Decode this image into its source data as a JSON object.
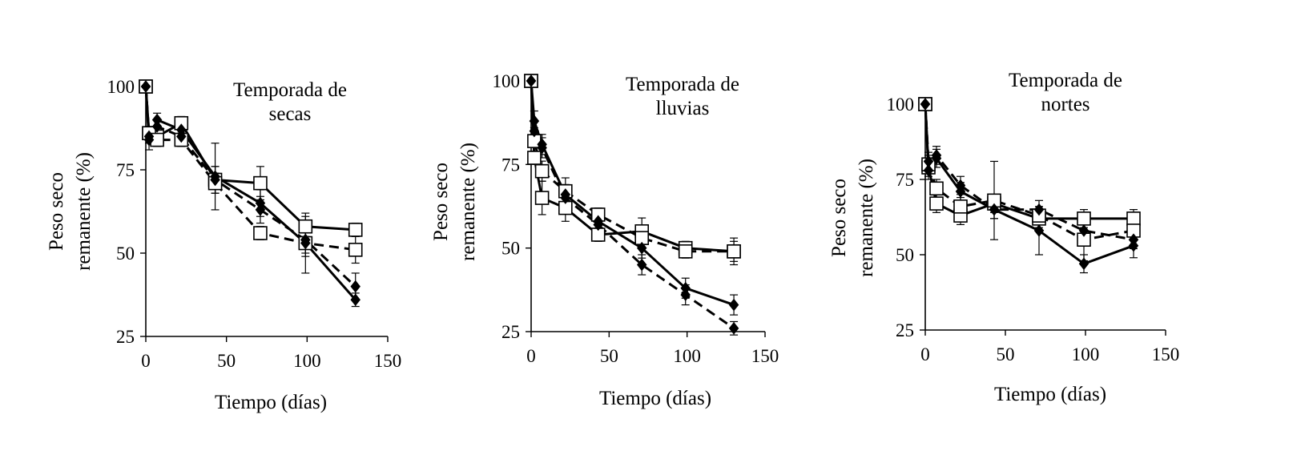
{
  "chart_data": [
    {
      "type": "line",
      "title": [
        "Temporada de",
        "secas"
      ],
      "xlabel": "Tiempo (días)",
      "ylabel": [
        "Peso seco",
        "remanente (%)"
      ],
      "xlim": [
        0,
        150
      ],
      "ylim": [
        25,
        100
      ],
      "xticks": [
        "0",
        "50",
        "100",
        "150"
      ],
      "yticks": [
        "25",
        "50",
        "75",
        "100"
      ],
      "xticks_values": [
        0,
        50,
        100,
        150
      ],
      "yticks_values": [
        25,
        50,
        75,
        100
      ],
      "x": [
        0,
        2,
        7,
        22,
        43,
        71,
        99,
        130
      ],
      "series": [
        {
          "name": "square-solid",
          "marker": "square",
          "line": "solid",
          "values": [
            100,
            86,
            85,
            89,
            72,
            71,
            58,
            57
          ],
          "errors": [
            0,
            2,
            2,
            2,
            4,
            5,
            3,
            2
          ]
        },
        {
          "name": "square-dashed",
          "marker": "square",
          "line": "dashed",
          "values": [
            100,
            86,
            84,
            84,
            71,
            56,
            53,
            51
          ],
          "errors": [
            0,
            2,
            2,
            2,
            3,
            2,
            9,
            4
          ]
        },
        {
          "name": "diamond-solid",
          "marker": "diamond",
          "line": "solid",
          "values": [
            100,
            84,
            90,
            87,
            73,
            65,
            53,
            36
          ],
          "errors": [
            0,
            3,
            2,
            2,
            10,
            4,
            4,
            2
          ]
        },
        {
          "name": "diamond-dashed",
          "marker": "diamond",
          "line": "dashed",
          "values": [
            100,
            85,
            88,
            85,
            72,
            63,
            54,
            40
          ],
          "errors": [
            0,
            2,
            2,
            2,
            4,
            4,
            4,
            4
          ]
        }
      ]
    },
    {
      "type": "line",
      "title": [
        "Temporada de",
        "lluvias"
      ],
      "xlabel": "Tiempo (días)",
      "ylabel": [
        "Peso seco",
        "remanente (%)"
      ],
      "xlim": [
        0,
        150
      ],
      "ylim": [
        25,
        100
      ],
      "xticks": [
        "0",
        "50",
        "100",
        "150"
      ],
      "yticks": [
        "25",
        "50",
        "75",
        "100"
      ],
      "xticks_values": [
        0,
        50,
        100,
        150
      ],
      "yticks_values": [
        25,
        50,
        75,
        100
      ],
      "x": [
        0,
        2,
        7,
        22,
        43,
        71,
        99,
        130
      ],
      "series": [
        {
          "name": "square-solid",
          "marker": "square",
          "line": "solid",
          "values": [
            100,
            77,
            65,
            62,
            54,
            55,
            50,
            49
          ],
          "errors": [
            0,
            2,
            5,
            4,
            2,
            4,
            2,
            4
          ]
        },
        {
          "name": "square-dashed",
          "marker": "square",
          "line": "dashed",
          "values": [
            100,
            82,
            73,
            67,
            60,
            53,
            49,
            49
          ],
          "errors": [
            0,
            4,
            3,
            4,
            2,
            3,
            2,
            3
          ]
        },
        {
          "name": "diamond-solid",
          "marker": "diamond",
          "line": "solid",
          "values": [
            100,
            88,
            81,
            66,
            58,
            50,
            38,
            33
          ],
          "errors": [
            0,
            3,
            3,
            3,
            3,
            3,
            3,
            3
          ]
        },
        {
          "name": "diamond-dashed",
          "marker": "diamond",
          "line": "dashed",
          "values": [
            100,
            85,
            80,
            65,
            57,
            45,
            36,
            26
          ],
          "errors": [
            0,
            3,
            3,
            3,
            3,
            3,
            3,
            2
          ]
        }
      ]
    },
    {
      "type": "line",
      "title": [
        "Temporada de",
        "nortes"
      ],
      "xlabel": "Tiempo (días)",
      "ylabel": [
        "Peso seco",
        "remanente (%)"
      ],
      "xlim": [
        0,
        150
      ],
      "ylim": [
        25,
        100
      ],
      "xticks": [
        "0",
        "50",
        "100",
        "150"
      ],
      "yticks": [
        "25",
        "50",
        "75",
        "100"
      ],
      "xticks_values": [
        0,
        50,
        100,
        150
      ],
      "yticks_values": [
        25,
        50,
        75,
        100
      ],
      "x": [
        0,
        2,
        7,
        22,
        43,
        71,
        99,
        130
      ],
      "series": [
        {
          "name": "square-solid",
          "marker": "square",
          "line": "solid",
          "values": [
            100,
            79,
            67,
            63,
            67,
            62,
            62,
            62
          ],
          "errors": [
            0,
            3,
            3,
            3,
            3,
            3,
            3,
            3
          ]
        },
        {
          "name": "square-dashed",
          "marker": "square",
          "line": "dashed",
          "values": [
            100,
            80,
            72,
            66,
            68,
            63,
            55,
            58
          ],
          "errors": [
            0,
            3,
            3,
            3,
            13,
            3,
            7,
            3
          ]
        },
        {
          "name": "diamond-solid",
          "marker": "diamond",
          "line": "solid",
          "values": [
            100,
            78,
            82,
            71,
            65,
            58,
            47,
            53
          ],
          "errors": [
            0,
            3,
            3,
            3,
            3,
            8,
            3,
            4
          ]
        },
        {
          "name": "diamond-dashed",
          "marker": "diamond",
          "line": "dashed",
          "values": [
            100,
            81,
            83,
            73,
            65,
            65,
            58,
            55
          ],
          "errors": [
            0,
            3,
            3,
            3,
            3,
            3,
            3,
            3
          ]
        }
      ]
    }
  ]
}
